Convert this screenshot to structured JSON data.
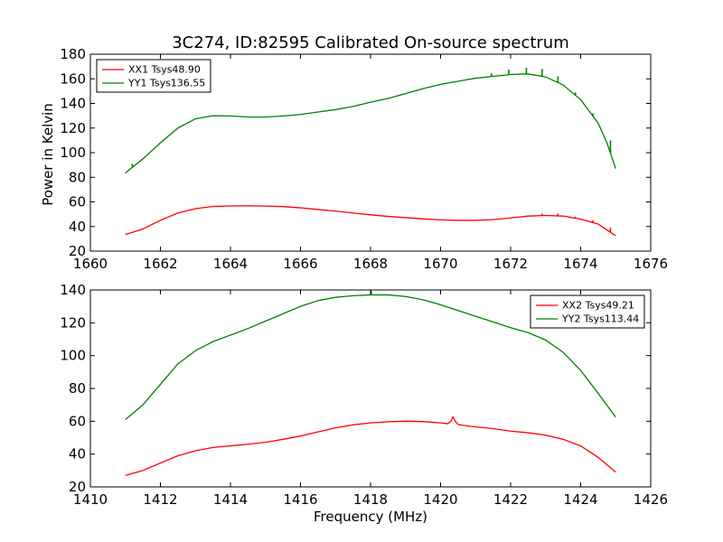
{
  "figure": {
    "title": "3C274, ID:82595 Calibrated On-source spectrum",
    "ylabel": "Power in Kelvin",
    "xlabel": "Frequency (MHz)"
  },
  "colors": {
    "xx": "#ff0000",
    "yy": "#008000",
    "axes": "#000000"
  },
  "chart_data": [
    {
      "type": "line",
      "xlim": [
        1660,
        1676
      ],
      "ylim": [
        20,
        180
      ],
      "xticks": [
        1660,
        1662,
        1664,
        1666,
        1668,
        1670,
        1672,
        1674,
        1676
      ],
      "yticks": [
        20,
        40,
        60,
        80,
        100,
        120,
        140,
        160,
        180
      ],
      "legend_position": "top-left",
      "series": [
        {
          "name": "XX1 Tsys48.90",
          "color": "#ff0000",
          "points": [
            [
              1661.0,
              33.5
            ],
            [
              1661.5,
              38
            ],
            [
              1662.0,
              45
            ],
            [
              1662.5,
              51
            ],
            [
              1663.0,
              54.5
            ],
            [
              1663.5,
              56.3
            ],
            [
              1664.0,
              56.7
            ],
            [
              1664.5,
              56.9
            ],
            [
              1665.0,
              56.6
            ],
            [
              1665.5,
              56.2
            ],
            [
              1666.0,
              55.2
            ],
            [
              1666.5,
              53.8
            ],
            [
              1667.0,
              52.5
            ],
            [
              1667.5,
              51
            ],
            [
              1668.0,
              49.5
            ],
            [
              1668.5,
              48.2
            ],
            [
              1669.0,
              47.2
            ],
            [
              1669.5,
              46.2
            ],
            [
              1670.0,
              45.4
            ],
            [
              1670.5,
              45
            ],
            [
              1671.0,
              45
            ],
            [
              1671.5,
              45.6
            ],
            [
              1672.0,
              47
            ],
            [
              1672.5,
              48.5
            ],
            [
              1673.0,
              49
            ],
            [
              1673.5,
              48.5
            ],
            [
              1674.0,
              46
            ],
            [
              1674.5,
              42
            ],
            [
              1675.0,
              32.5
            ]
          ],
          "spikes": [
            [
              1672.9,
              50.5
            ],
            [
              1673.35,
              50.5
            ],
            [
              1673.85,
              48
            ],
            [
              1674.35,
              45
            ],
            [
              1674.85,
              39
            ]
          ]
        },
        {
          "name": "YY1 Tsys136.55",
          "color": "#008000",
          "points": [
            [
              1661.0,
              83.5
            ],
            [
              1661.5,
              95
            ],
            [
              1662.0,
              108
            ],
            [
              1662.5,
              120
            ],
            [
              1663.0,
              127.5
            ],
            [
              1663.5,
              130
            ],
            [
              1664.0,
              129.8
            ],
            [
              1664.5,
              129
            ],
            [
              1665.0,
              128.9
            ],
            [
              1665.5,
              129.8
            ],
            [
              1666.0,
              131
            ],
            [
              1666.5,
              133
            ],
            [
              1667.0,
              135
            ],
            [
              1667.5,
              137.5
            ],
            [
              1668.0,
              141
            ],
            [
              1668.5,
              144
            ],
            [
              1669.0,
              148
            ],
            [
              1669.5,
              152
            ],
            [
              1670.0,
              155.5
            ],
            [
              1670.5,
              158
            ],
            [
              1671.0,
              160.5
            ],
            [
              1671.5,
              162
            ],
            [
              1672.0,
              163.5
            ],
            [
              1672.5,
              164
            ],
            [
              1673.0,
              161.5
            ],
            [
              1673.5,
              155
            ],
            [
              1674.0,
              143
            ],
            [
              1674.5,
              124
            ],
            [
              1674.75,
              108
            ],
            [
              1675.0,
              87
            ]
          ],
          "spikes": [
            [
              1661.2,
              91
            ],
            [
              1671.45,
              164.5
            ],
            [
              1671.95,
              167.5
            ],
            [
              1672.45,
              169
            ],
            [
              1672.9,
              168
            ],
            [
              1673.35,
              162
            ],
            [
              1673.85,
              149
            ],
            [
              1674.35,
              132
            ],
            [
              1674.85,
              110
            ]
          ]
        }
      ]
    },
    {
      "type": "line",
      "xlim": [
        1410,
        1426
      ],
      "ylim": [
        20,
        140
      ],
      "xticks": [
        1410,
        1412,
        1414,
        1416,
        1418,
        1420,
        1422,
        1424,
        1426
      ],
      "yticks": [
        20,
        40,
        60,
        80,
        100,
        120,
        140
      ],
      "legend_position": "top-right",
      "series": [
        {
          "name": "XX2 Tsys49.21",
          "color": "#ff0000",
          "points": [
            [
              1411.0,
              27
            ],
            [
              1411.5,
              30
            ],
            [
              1412.0,
              34.5
            ],
            [
              1412.5,
              39
            ],
            [
              1413.0,
              42
            ],
            [
              1413.5,
              44
            ],
            [
              1414.0,
              45
            ],
            [
              1414.5,
              46
            ],
            [
              1415.0,
              47.2
            ],
            [
              1415.5,
              49
            ],
            [
              1416.0,
              51
            ],
            [
              1416.5,
              53.5
            ],
            [
              1417.0,
              56
            ],
            [
              1417.5,
              57.8
            ],
            [
              1418.0,
              59
            ],
            [
              1418.5,
              59.7
            ],
            [
              1419.0,
              60
            ],
            [
              1419.5,
              59.8
            ],
            [
              1420.0,
              59
            ],
            [
              1420.2,
              58.5
            ],
            [
              1420.3,
              60
            ],
            [
              1420.35,
              62.8
            ],
            [
              1420.42,
              60
            ],
            [
              1420.5,
              58
            ],
            [
              1420.8,
              57
            ],
            [
              1421.5,
              55.5
            ],
            [
              1422.0,
              54
            ],
            [
              1422.5,
              53
            ],
            [
              1423.0,
              51.5
            ],
            [
              1423.5,
              49
            ],
            [
              1424.0,
              45
            ],
            [
              1424.5,
              38
            ],
            [
              1425.0,
              29
            ]
          ],
          "spikes": []
        },
        {
          "name": "YY2 Tsys113.44",
          "color": "#008000",
          "points": [
            [
              1411.0,
              61
            ],
            [
              1411.5,
              70
            ],
            [
              1412.0,
              82.5
            ],
            [
              1412.5,
              95
            ],
            [
              1413.0,
              103
            ],
            [
              1413.5,
              108.5
            ],
            [
              1414.0,
              112.5
            ],
            [
              1414.5,
              116.5
            ],
            [
              1415.0,
              121
            ],
            [
              1415.5,
              125.5
            ],
            [
              1416.0,
              130
            ],
            [
              1416.5,
              133.5
            ],
            [
              1417.0,
              135.5
            ],
            [
              1417.5,
              136.5
            ],
            [
              1418.0,
              137
            ],
            [
              1418.5,
              137
            ],
            [
              1419.0,
              136
            ],
            [
              1419.5,
              134
            ],
            [
              1420.0,
              131
            ],
            [
              1420.5,
              127.5
            ],
            [
              1421.0,
              124
            ],
            [
              1421.5,
              120.5
            ],
            [
              1422.0,
              117
            ],
            [
              1422.5,
              114
            ],
            [
              1423.0,
              109.5
            ],
            [
              1423.5,
              102
            ],
            [
              1424.0,
              91
            ],
            [
              1424.5,
              77
            ],
            [
              1425.0,
              62.5
            ]
          ],
          "spikes": [
            [
              1418.02,
              139.5
            ]
          ]
        }
      ]
    }
  ]
}
